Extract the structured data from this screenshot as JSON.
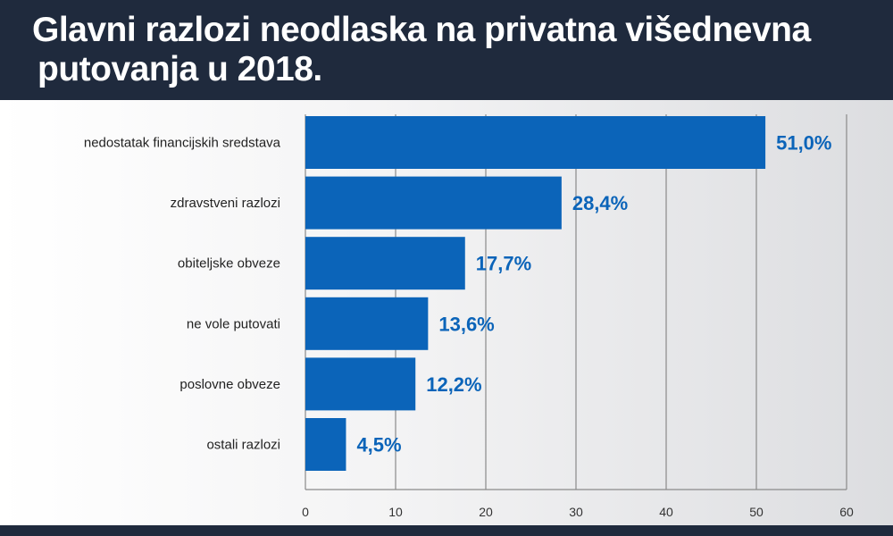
{
  "header": {
    "title_line1": "Glavni razlozi neodlaska na privatna višednevna",
    "title_line2": "putovanja u 2018."
  },
  "colors": {
    "bar": "#0b64b9",
    "value_text": "#0b64b9",
    "header_bg": "#1f2a3d",
    "grid": "#8a8a8a"
  },
  "chart_data": {
    "type": "bar",
    "orientation": "horizontal",
    "title": "Glavni razlozi neodlaska na privatna višednevna putovanja u 2018.",
    "categories": [
      "nedostatak financijskih sredstava",
      "zdravstveni razlozi",
      "obiteljske obveze",
      "ne vole putovati",
      "poslovne obveze",
      "ostali razlozi"
    ],
    "values": [
      51.0,
      28.4,
      17.7,
      13.6,
      12.2,
      4.5
    ],
    "value_labels": [
      "51,0%",
      "28,4%",
      "17,7%",
      "13,6%",
      "12,2%",
      "4,5%"
    ],
    "x_ticks": [
      "0",
      "10",
      "20",
      "30",
      "40",
      "50",
      "60"
    ],
    "xlim": [
      0,
      60
    ],
    "grid": true,
    "legend": "none"
  }
}
